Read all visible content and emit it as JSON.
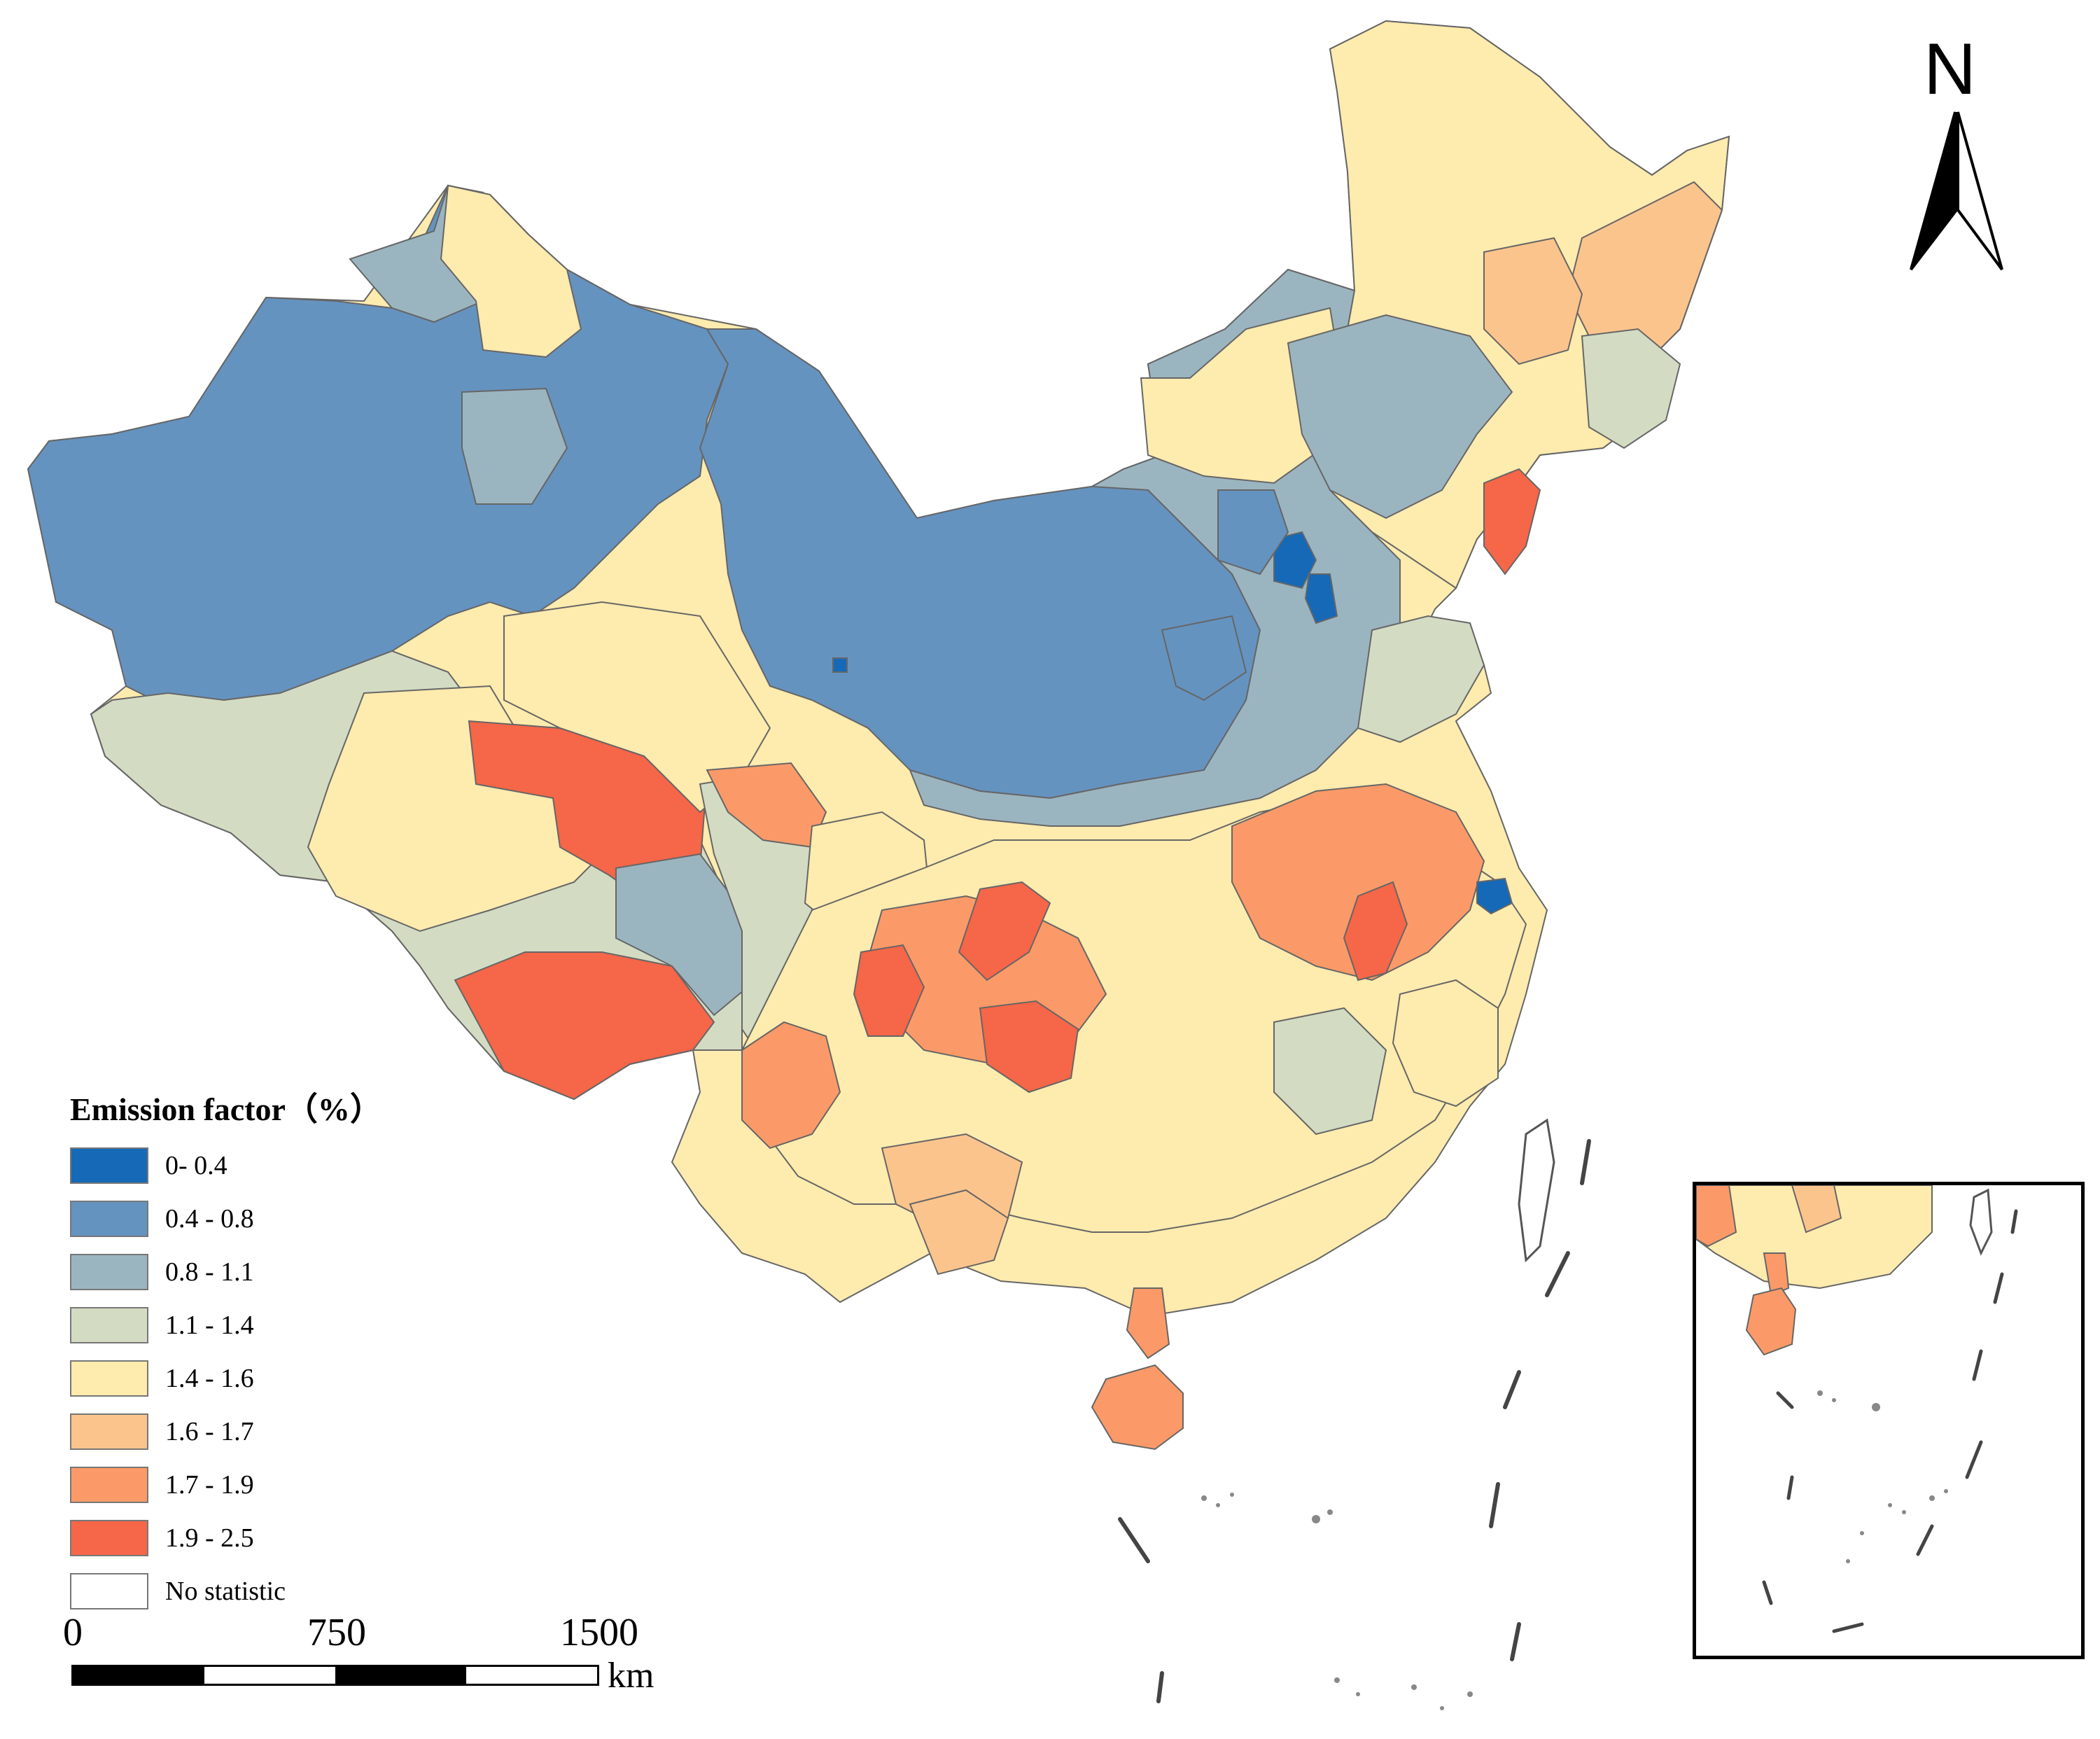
{
  "legend": {
    "title": "Emission factor（%）",
    "classes": [
      {
        "label": "0- 0.4",
        "color": "#1569B7"
      },
      {
        "label": "0.4 - 0.8",
        "color": "#6593C0"
      },
      {
        "label": "0.8 - 1.1",
        "color": "#9BB5C0"
      },
      {
        "label": "1.1 - 1.4",
        "color": "#D3DCC3"
      },
      {
        "label": "1.4 - 1.6",
        "color": "#FEEBAE"
      },
      {
        "label": "1.6 - 1.7",
        "color": "#FCC48D"
      },
      {
        "label": "1.7 - 1.9",
        "color": "#FB9A68"
      },
      {
        "label": "1.9 - 2.5",
        "color": "#F66648"
      },
      {
        "label": "No statistic",
        "color": "#FFFFFF"
      }
    ]
  },
  "scale_bar": {
    "ticks": [
      "0",
      "750",
      "1500"
    ],
    "unit": "km"
  },
  "north_arrow": {
    "label": "N"
  }
}
